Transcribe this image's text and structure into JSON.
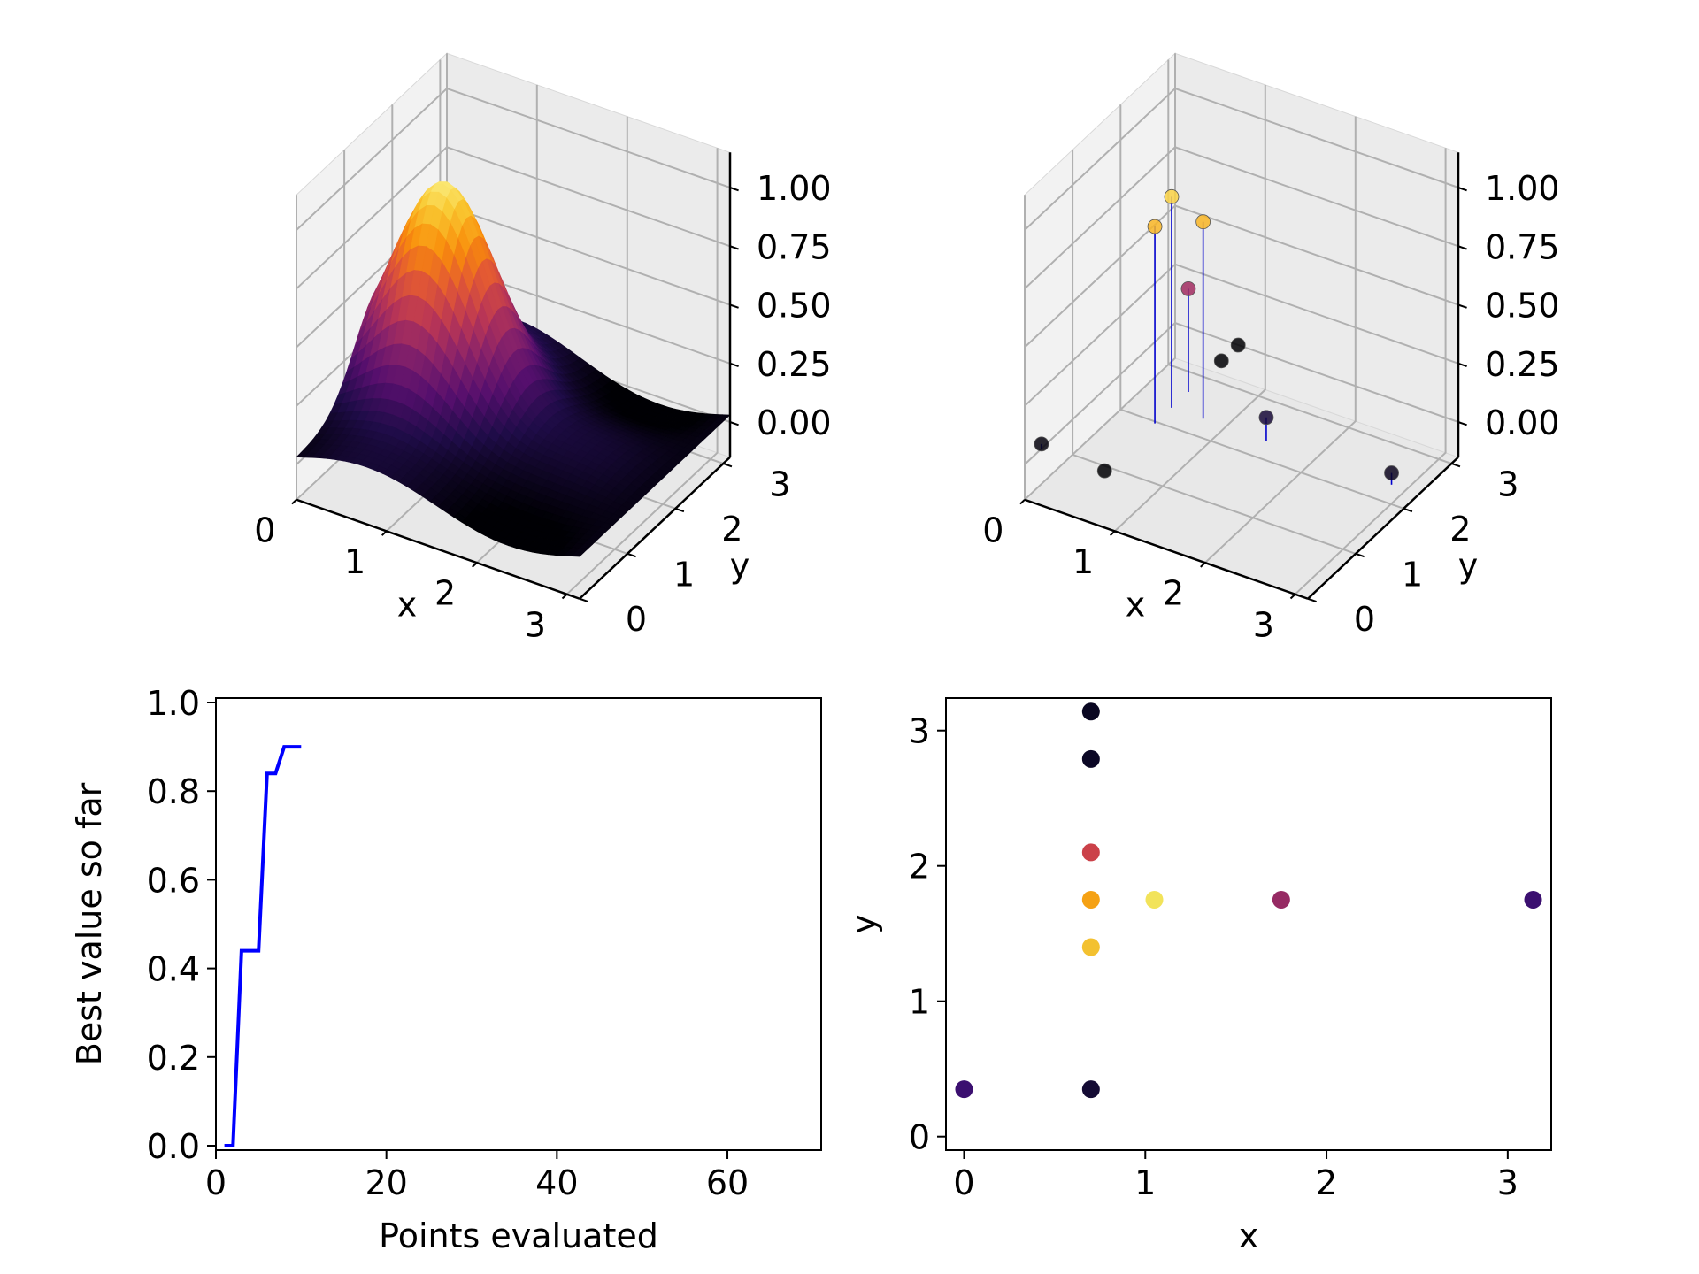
{
  "colors": {
    "line": "#0000ff",
    "stem": "#0000cc",
    "pane": "#f2f2f2",
    "grid": "#b0b0b0",
    "colormap": "inferno"
  },
  "chart_data": [
    {
      "type": "surface",
      "panel": "top-left",
      "xlabel": "x",
      "ylabel": "y",
      "xticks": [
        "0",
        "1",
        "2",
        "3"
      ],
      "yticks": [
        "0",
        "1",
        "2",
        "3"
      ],
      "zticks": [
        "0.00",
        "0.25",
        "0.50",
        "0.75",
        "1.00"
      ],
      "xlim": [
        0,
        3.14
      ],
      "ylim": [
        0,
        3.14
      ],
      "zlim": [
        0,
        1
      ],
      "surface_function": "gaussian peak near x=0.7, y=1.75 with low ripples elsewhere",
      "colormap": "inferno"
    },
    {
      "type": "scatter",
      "panel": "top-right",
      "style": "3d stem scatter",
      "xlabel": "x",
      "ylabel": "y",
      "xticks": [
        "0",
        "1",
        "2",
        "3"
      ],
      "yticks": [
        "0",
        "1",
        "2",
        "3"
      ],
      "zticks": [
        "0.00",
        "0.25",
        "0.50",
        "0.75",
        "1.00"
      ],
      "xlim": [
        0,
        3.14
      ],
      "ylim": [
        0,
        3.14
      ],
      "zlim": [
        0,
        1
      ],
      "points": [
        {
          "x": 0.0,
          "y": 0.35,
          "z": 0.02
        },
        {
          "x": 0.7,
          "y": 0.35,
          "z": 0.0
        },
        {
          "x": 0.7,
          "y": 1.4,
          "z": 0.84
        },
        {
          "x": 0.7,
          "y": 1.75,
          "z": 0.9
        },
        {
          "x": 0.7,
          "y": 2.1,
          "z": 0.44
        },
        {
          "x": 0.7,
          "y": 2.79,
          "z": 0.0
        },
        {
          "x": 0.7,
          "y": 3.14,
          "z": 0.0
        },
        {
          "x": 1.05,
          "y": 1.75,
          "z": 0.84
        },
        {
          "x": 1.75,
          "y": 1.75,
          "z": 0.1
        },
        {
          "x": 3.14,
          "y": 1.75,
          "z": 0.05
        }
      ]
    },
    {
      "type": "line",
      "panel": "bottom-left",
      "xlabel": "Points evaluated",
      "ylabel": "Best value so far",
      "xlim": [
        0,
        71
      ],
      "ylim": [
        -0.01,
        1.01
      ],
      "xticks": [
        "0",
        "20",
        "40",
        "60"
      ],
      "yticks": [
        "0.0",
        "0.2",
        "0.4",
        "0.6",
        "0.8",
        "1.0"
      ],
      "x": [
        1,
        2,
        3,
        4,
        5,
        6,
        7,
        8,
        9,
        10
      ],
      "y": [
        0.0,
        0.0,
        0.44,
        0.44,
        0.44,
        0.84,
        0.84,
        0.9,
        0.9,
        0.9
      ]
    },
    {
      "type": "scatter",
      "panel": "bottom-right",
      "xlabel": "x",
      "ylabel": "y",
      "xlim": [
        -0.1,
        3.24
      ],
      "ylim": [
        -0.1,
        3.24
      ],
      "xticks": [
        "0",
        "1",
        "2",
        "3"
      ],
      "yticks": [
        "0",
        "1",
        "2",
        "3"
      ],
      "colormap": "inferno",
      "points": [
        {
          "x": 0.0,
          "y": 0.35,
          "color": "#3b0f70"
        },
        {
          "x": 0.7,
          "y": 0.35,
          "color": "#140b34"
        },
        {
          "x": 0.7,
          "y": 1.4,
          "color": "#f3c130"
        },
        {
          "x": 0.7,
          "y": 1.75,
          "color": "#f5a114"
        },
        {
          "x": 0.7,
          "y": 2.1,
          "color": "#cb4149"
        },
        {
          "x": 0.7,
          "y": 2.79,
          "color": "#0b0725"
        },
        {
          "x": 0.7,
          "y": 3.14,
          "color": "#0a0722"
        },
        {
          "x": 1.05,
          "y": 1.75,
          "color": "#f2e35a"
        },
        {
          "x": 1.75,
          "y": 1.75,
          "color": "#962a63"
        },
        {
          "x": 3.14,
          "y": 1.75,
          "color": "#3b0f70"
        }
      ]
    }
  ]
}
